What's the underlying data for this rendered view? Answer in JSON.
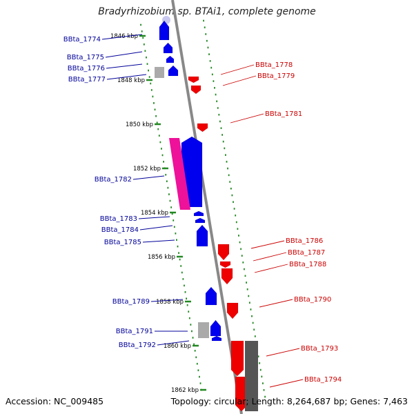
{
  "title": "Bradyrhizobium sp. BTAi1, complete genome",
  "footer": {
    "accession": "Accession: NC_009485",
    "topology": "Topology: circular; Length: 8,264,687 bp; Genes: 7,463"
  },
  "colors": {
    "forward": "#0000ee",
    "reverse": "#ee0000",
    "pseudo": "#ee1199",
    "other": "#aaaaaa",
    "backbone": "#888888",
    "tick": "#228822",
    "label_forward": "#000099",
    "label_reverse": "#cc0000"
  },
  "ruler": {
    "unit": "kbp",
    "ticks": [
      "1846 kbp",
      "1848 kbp",
      "1850 kbp",
      "1852 kbp",
      "1854 kbp",
      "1856 kbp",
      "1858 kbp",
      "1860 kbp",
      "1862 kbp"
    ]
  },
  "genes_left": [
    "BBta_1774",
    "BBta_1775",
    "BBta_1776",
    "BBta_1777",
    "BBta_1782",
    "BBta_1783",
    "BBta_1784",
    "BBta_1785",
    "BBta_1789",
    "BBta_1791",
    "BBta_1792"
  ],
  "genes_right": [
    "BBta_1778",
    "BBta_1779",
    "BBta_1781",
    "BBta_1786",
    "BBta_1787",
    "BBta_1788",
    "BBta_1790",
    "BBta_1793",
    "BBta_1794"
  ]
}
